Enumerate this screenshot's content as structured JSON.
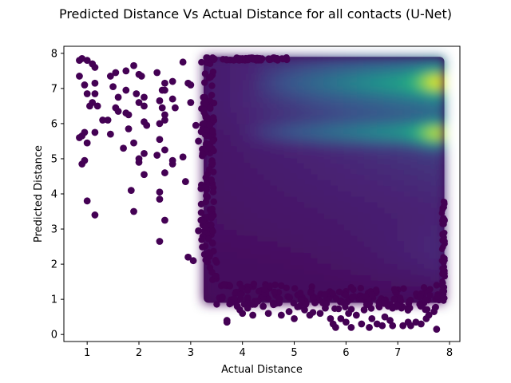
{
  "chart_data": {
    "type": "scatter",
    "title": "Predicted Distance Vs Actual Distance for all contacts (U-Net)",
    "xlabel": "Actual Distance",
    "ylabel": "Predicted Distance",
    "xlim": [
      0.55,
      8.2
    ],
    "ylim": [
      -0.2,
      8.2
    ],
    "x_ticks": [
      1,
      2,
      3,
      4,
      5,
      6,
      7,
      8
    ],
    "y_ticks": [
      0,
      1,
      2,
      3,
      4,
      5,
      6,
      7,
      8
    ],
    "grid": false,
    "legend": "none",
    "colormap": "viridis",
    "colors": {
      "low": "#440154",
      "mid": "#21918c",
      "high": "#fde725"
    },
    "density_region": {
      "x_range": [
        3.25,
        7.9
      ],
      "y_range": [
        0.9,
        7.9
      ],
      "note_bands": [
        {
          "y": 5.7,
          "x_from": 5.0,
          "intensity": "high"
        },
        {
          "y": 7.2,
          "x_from": 5.0,
          "intensity": "high"
        }
      ],
      "peaks": [
        {
          "x": 7.75,
          "y": 7.2
        },
        {
          "x": 7.75,
          "y": 5.7
        }
      ]
    },
    "sparse_points": [
      [
        0.85,
        7.8
      ],
      [
        0.9,
        7.85
      ],
      [
        0.85,
        7.35
      ],
      [
        1.0,
        7.8
      ],
      [
        1.1,
        7.7
      ],
      [
        1.15,
        7.6
      ],
      [
        0.95,
        7.1
      ],
      [
        1.0,
        6.85
      ],
      [
        1.1,
        6.6
      ],
      [
        1.15,
        6.85
      ],
      [
        1.15,
        7.15
      ],
      [
        1.05,
        6.5
      ],
      [
        1.2,
        6.5
      ],
      [
        1.3,
        6.1
      ],
      [
        1.4,
        6.1
      ],
      [
        0.95,
        5.75
      ],
      [
        0.9,
        5.65
      ],
      [
        0.85,
        5.6
      ],
      [
        1.0,
        5.45
      ],
      [
        1.15,
        5.75
      ],
      [
        0.9,
        4.85
      ],
      [
        0.95,
        4.95
      ],
      [
        1.0,
        3.8
      ],
      [
        1.15,
        3.4
      ],
      [
        1.45,
        7.35
      ],
      [
        1.55,
        7.45
      ],
      [
        1.75,
        7.5
      ],
      [
        1.9,
        7.65
      ],
      [
        2.0,
        7.4
      ],
      [
        2.05,
        7.35
      ],
      [
        2.35,
        7.45
      ],
      [
        2.5,
        7.15
      ],
      [
        2.65,
        7.2
      ],
      [
        2.85,
        7.75
      ],
      [
        2.95,
        7.15
      ],
      [
        3.0,
        7.1
      ],
      [
        1.5,
        7.05
      ],
      [
        1.6,
        6.75
      ],
      [
        1.75,
        6.95
      ],
      [
        1.95,
        6.85
      ],
      [
        2.1,
        6.75
      ],
      [
        2.0,
        6.6
      ],
      [
        2.4,
        6.65
      ],
      [
        2.45,
        6.95
      ],
      [
        2.5,
        6.95
      ],
      [
        2.65,
        6.7
      ],
      [
        2.7,
        6.45
      ],
      [
        1.55,
        6.45
      ],
      [
        1.6,
        6.35
      ],
      [
        1.75,
        6.3
      ],
      [
        1.8,
        6.25
      ],
      [
        2.1,
        6.5
      ],
      [
        2.45,
        6.45
      ],
      [
        2.5,
        6.25
      ],
      [
        3.0,
        6.6
      ],
      [
        2.1,
        6.05
      ],
      [
        2.15,
        5.95
      ],
      [
        2.5,
        6.1
      ],
      [
        2.4,
        6.0
      ],
      [
        1.45,
        5.7
      ],
      [
        1.8,
        5.85
      ],
      [
        1.7,
        5.3
      ],
      [
        1.9,
        5.45
      ],
      [
        2.1,
        5.15
      ],
      [
        2.0,
        5.0
      ],
      [
        2.4,
        5.55
      ],
      [
        2.5,
        5.25
      ],
      [
        2.65,
        4.95
      ],
      [
        2.65,
        4.85
      ],
      [
        2.0,
        4.9
      ],
      [
        2.1,
        4.55
      ],
      [
        2.35,
        5.1
      ],
      [
        2.5,
        4.6
      ],
      [
        2.85,
        5.05
      ],
      [
        2.9,
        4.35
      ],
      [
        1.85,
        4.1
      ],
      [
        2.4,
        4.05
      ],
      [
        2.4,
        3.85
      ],
      [
        1.9,
        3.5
      ],
      [
        2.5,
        3.25
      ],
      [
        2.4,
        2.65
      ],
      [
        2.95,
        2.2
      ],
      [
        3.05,
        2.1
      ],
      [
        3.15,
        2.95
      ],
      [
        3.1,
        5.95
      ],
      [
        3.15,
        5.5
      ],
      [
        3.2,
        4.15
      ],
      [
        3.2,
        3.25
      ],
      [
        3.7,
        0.4
      ],
      [
        3.7,
        0.35
      ],
      [
        3.9,
        0.8
      ],
      [
        4.0,
        0.6
      ],
      [
        4.1,
        0.75
      ],
      [
        4.2,
        0.55
      ],
      [
        4.4,
        0.8
      ],
      [
        4.5,
        0.6
      ],
      [
        4.6,
        0.85
      ],
      [
        4.75,
        0.55
      ],
      [
        4.9,
        0.65
      ],
      [
        5.0,
        0.45
      ],
      [
        5.1,
        0.8
      ],
      [
        5.2,
        0.7
      ],
      [
        5.3,
        0.55
      ],
      [
        5.4,
        0.9
      ],
      [
        5.5,
        0.6
      ],
      [
        5.6,
        0.75
      ],
      [
        5.7,
        0.45
      ],
      [
        5.75,
        0.3
      ],
      [
        5.8,
        0.2
      ],
      [
        5.9,
        0.45
      ],
      [
        6.0,
        0.35
      ],
      [
        6.05,
        0.6
      ],
      [
        6.1,
        0.2
      ],
      [
        6.2,
        0.55
      ],
      [
        6.3,
        0.3
      ],
      [
        6.35,
        0.7
      ],
      [
        6.45,
        0.2
      ],
      [
        6.5,
        0.45
      ],
      [
        6.6,
        0.3
      ],
      [
        6.7,
        0.25
      ],
      [
        6.75,
        0.5
      ],
      [
        6.85,
        0.4
      ],
      [
        6.9,
        0.25
      ],
      [
        7.0,
        0.8
      ],
      [
        7.1,
        0.25
      ],
      [
        7.2,
        0.35
      ],
      [
        7.25,
        0.25
      ],
      [
        7.35,
        0.35
      ],
      [
        7.45,
        0.3
      ],
      [
        7.55,
        0.45
      ],
      [
        7.7,
        0.65
      ],
      [
        7.75,
        0.15
      ],
      [
        7.6,
        0.55
      ],
      [
        6.9,
        0.75
      ],
      [
        6.4,
        0.85
      ],
      [
        5.95,
        0.9
      ],
      [
        4.3,
        0.95
      ],
      [
        3.95,
        0.7
      ]
    ]
  }
}
